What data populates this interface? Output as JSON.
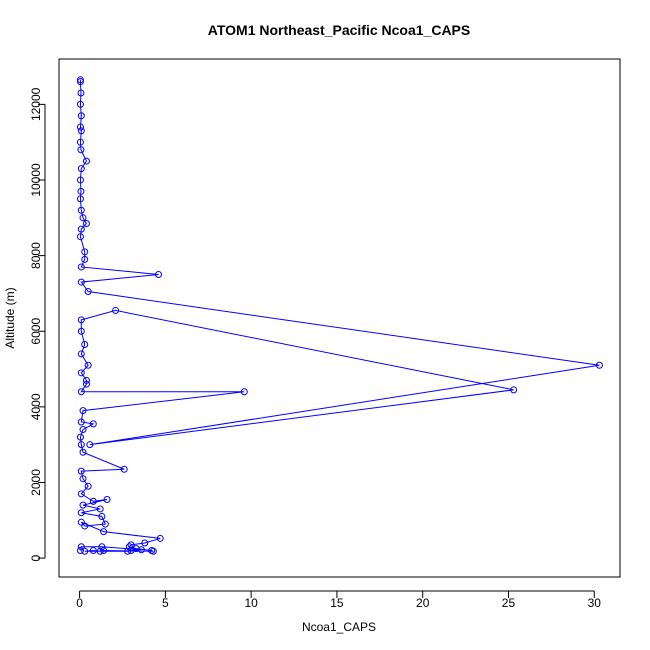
{
  "chart_data": {
    "type": "line",
    "title": "ATOM1 Northeast_Pacific Ncoa1_CAPS",
    "xlabel": "Ncoa1_CAPS",
    "ylabel": "Altitude (m)",
    "xlim": [
      -1.2,
      31.5
    ],
    "ylim": [
      -500,
      13200
    ],
    "xticks": [
      0,
      5,
      10,
      15,
      20,
      25,
      30
    ],
    "yticks": [
      0,
      2000,
      4000,
      6000,
      8000,
      10000,
      12000
    ],
    "color": "#0000ff",
    "grid": false,
    "series": [
      {
        "points": [
          [
            0.05,
            12650
          ],
          [
            0.05,
            12600
          ],
          [
            0.08,
            12300
          ],
          [
            0.05,
            12000
          ],
          [
            0.1,
            11700
          ],
          [
            0.05,
            11400
          ],
          [
            0.1,
            11300
          ],
          [
            0.05,
            11000
          ],
          [
            0.08,
            10800
          ],
          [
            0.4,
            10500
          ],
          [
            0.1,
            10300
          ],
          [
            0.05,
            10000
          ],
          [
            0.08,
            9700
          ],
          [
            0.05,
            9500
          ],
          [
            0.1,
            9200
          ],
          [
            0.2,
            9000
          ],
          [
            0.4,
            8850
          ],
          [
            0.1,
            8700
          ],
          [
            0.05,
            8500
          ],
          [
            0.3,
            8100
          ],
          [
            0.3,
            7900
          ],
          [
            0.1,
            7700
          ],
          [
            4.6,
            7500
          ],
          [
            0.1,
            7300
          ],
          [
            0.5,
            7050
          ],
          [
            30.3,
            5100
          ],
          [
            0.6,
            3000
          ],
          [
            25.3,
            4450
          ],
          [
            2.1,
            6550
          ],
          [
            0.1,
            6300
          ],
          [
            0.1,
            6000
          ],
          [
            0.3,
            5650
          ],
          [
            0.1,
            5400
          ],
          [
            0.5,
            5100
          ],
          [
            0.1,
            4900
          ],
          [
            0.4,
            4700
          ],
          [
            0.4,
            4600
          ],
          [
            0.1,
            4400
          ],
          [
            9.6,
            4400
          ],
          [
            0.2,
            3900
          ],
          [
            0.1,
            3600
          ],
          [
            0.8,
            3550
          ],
          [
            0.2,
            3400
          ],
          [
            0.05,
            3200
          ],
          [
            0.1,
            3000
          ],
          [
            0.2,
            2800
          ],
          [
            2.6,
            2350
          ],
          [
            0.1,
            2300
          ],
          [
            0.2,
            2100
          ],
          [
            0.5,
            1900
          ],
          [
            0.1,
            1700
          ],
          [
            0.8,
            1500
          ],
          [
            1.6,
            1550
          ],
          [
            0.2,
            1400
          ],
          [
            1.2,
            1300
          ],
          [
            0.1,
            1200
          ],
          [
            1.3,
            1100
          ],
          [
            1.5,
            900
          ],
          [
            0.3,
            850
          ],
          [
            0.1,
            950
          ],
          [
            1.4,
            700
          ],
          [
            4.7,
            520
          ],
          [
            3.8,
            400
          ],
          [
            3.0,
            350
          ],
          [
            2.9,
            300
          ],
          [
            3.3,
            250
          ],
          [
            4.2,
            200
          ],
          [
            4.3,
            180
          ],
          [
            1.4,
            200
          ],
          [
            1.2,
            180
          ],
          [
            0.8,
            200
          ],
          [
            0.3,
            180
          ],
          [
            2.8,
            180
          ],
          [
            3.0,
            200
          ],
          [
            3.6,
            220
          ],
          [
            1.3,
            300
          ],
          [
            0.1,
            300
          ],
          [
            0.05,
            200
          ]
        ]
      }
    ]
  }
}
